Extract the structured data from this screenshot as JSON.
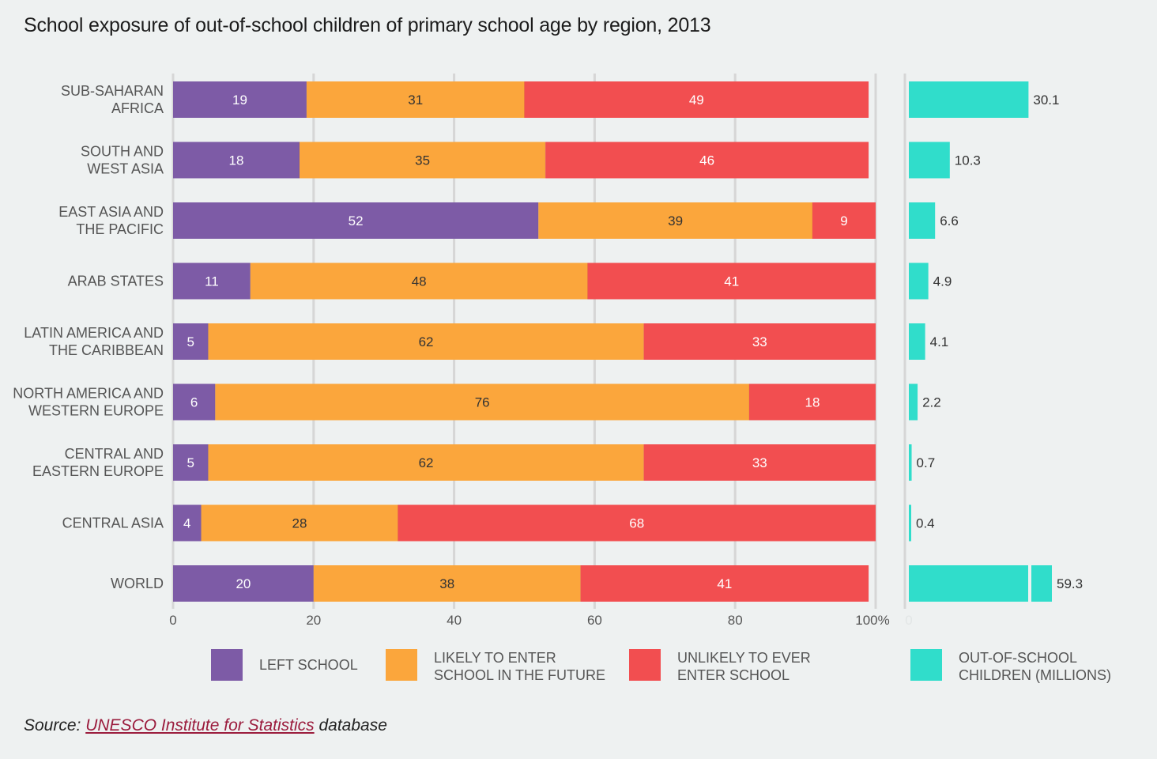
{
  "title": "School exposure of out-of-school children of primary school age by region, 2013",
  "colors": {
    "left_school": "#7d5ba6",
    "likely_to_enter": "#fba63c",
    "unlikely_to_enter": "#f24e50",
    "out_of_school": "#30ddcb",
    "grid": "#d6d6d6"
  },
  "chart_data": {
    "type": "bar",
    "orientation": "horizontal",
    "stacked": true,
    "categories": [
      [
        "SUB-SAHARAN",
        "AFRICA"
      ],
      [
        "SOUTH AND",
        "WEST ASIA"
      ],
      [
        "EAST ASIA AND",
        "THE PACIFIC"
      ],
      [
        "ARAB STATES"
      ],
      [
        "LATIN AMERICA AND",
        "THE CARIBBEAN"
      ],
      [
        "NORTH AMERICA AND",
        "WESTERN EUROPE"
      ],
      [
        "CENTRAL AND",
        "EASTERN EUROPE"
      ],
      [
        "CENTRAL ASIA"
      ],
      [
        "WORLD"
      ]
    ],
    "series": [
      {
        "name": "LEFT SCHOOL",
        "values": [
          19,
          18,
          52,
          11,
          5,
          6,
          5,
          4,
          20
        ]
      },
      {
        "name": "LIKELY TO ENTER SCHOOL IN THE FUTURE",
        "values": [
          31,
          35,
          39,
          48,
          62,
          76,
          62,
          28,
          38
        ]
      },
      {
        "name": "UNLIKELY TO EVER ENTER SCHOOL",
        "values": [
          49,
          46,
          9,
          41,
          33,
          18,
          33,
          68,
          41
        ]
      }
    ],
    "xlim": [
      0,
      100
    ],
    "xticks": [
      "0",
      "20",
      "40",
      "60",
      "80",
      "100%"
    ],
    "secondary": {
      "name": "OUT-OF-SCHOOL CHILDREN (MILLIONS)",
      "values": [
        30.1,
        10.3,
        6.6,
        4.9,
        4.1,
        2.2,
        0.7,
        0.4,
        59.3
      ],
      "labels": [
        "30.1",
        "10.3",
        "6.6",
        "4.9",
        "4.1",
        "2.2",
        "0.7",
        "0.4",
        "59.3"
      ],
      "tick_zero": "0",
      "broken_last_bar": true
    },
    "legend": [
      {
        "key": "left_school",
        "lines": [
          "LEFT SCHOOL"
        ]
      },
      {
        "key": "likely_to_enter",
        "lines": [
          "LIKELY TO ENTER",
          "SCHOOL IN THE FUTURE"
        ]
      },
      {
        "key": "unlikely_to_enter",
        "lines": [
          "UNLIKELY TO EVER",
          "ENTER SCHOOL"
        ]
      },
      {
        "key": "out_of_school",
        "lines": [
          "OUT-OF-SCHOOL",
          "CHILDREN (MILLIONS)"
        ]
      }
    ],
    "legend_position": "bottom",
    "grid": true
  },
  "source": {
    "prefix": "Source: ",
    "link": "UNESCO Institute for Statistics",
    "suffix": " database"
  }
}
